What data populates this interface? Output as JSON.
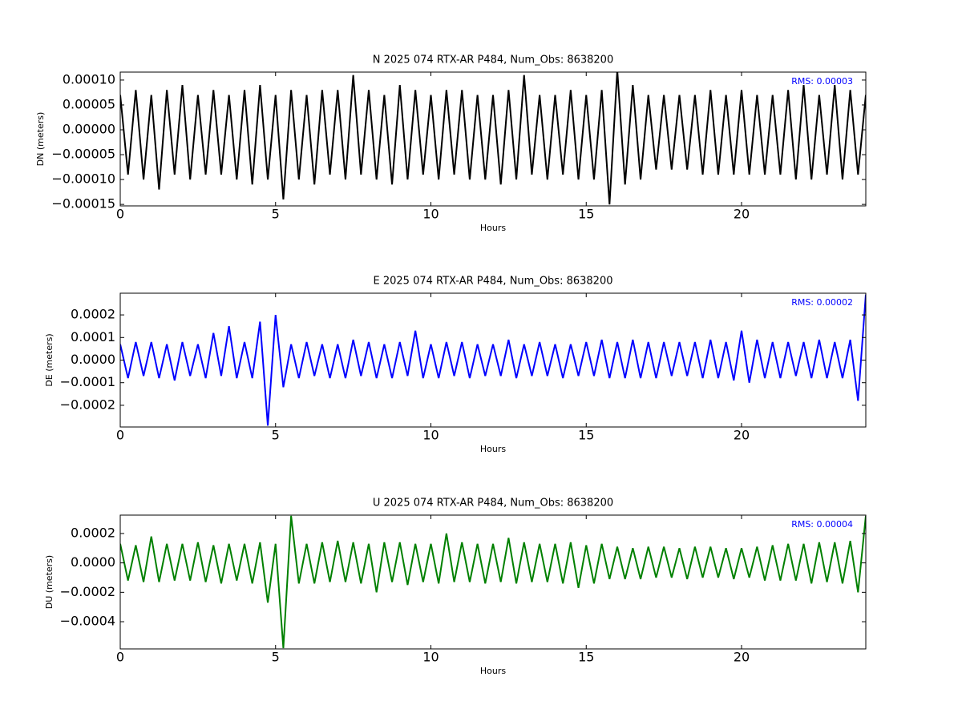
{
  "chart_data": [
    {
      "type": "line",
      "title": "N 2025 074 RTX-AR  P484, Num_Obs: 8638200",
      "xlabel": "Hours",
      "ylabel": "DN (meters)",
      "annotation": "RMS:  0.00003",
      "annotation_color": "#0000ff",
      "x": [
        0,
        0.25,
        0.5,
        0.75,
        1,
        1.25,
        1.5,
        1.75,
        2,
        2.25,
        2.5,
        2.75,
        3,
        3.25,
        3.5,
        3.75,
        4,
        4.25,
        4.5,
        4.75,
        5,
        5.25,
        5.5,
        5.75,
        6,
        6.25,
        6.5,
        6.75,
        7,
        7.25,
        7.5,
        7.75,
        8,
        8.25,
        8.5,
        8.75,
        9,
        9.25,
        9.5,
        9.75,
        10,
        10.25,
        10.5,
        10.75,
        11,
        11.25,
        11.5,
        11.75,
        12,
        12.25,
        12.5,
        12.75,
        13,
        13.25,
        13.5,
        13.75,
        14,
        14.25,
        14.5,
        14.75,
        15,
        15.25,
        15.5,
        15.75,
        16,
        16.25,
        16.5,
        16.75,
        17,
        17.25,
        17.5,
        17.75,
        18,
        18.25,
        18.5,
        18.75,
        19,
        19.25,
        19.5,
        19.75,
        20,
        20.25,
        20.5,
        20.75,
        21,
        21.25,
        21.5,
        21.75,
        22,
        22.25,
        22.5,
        22.75,
        23,
        23.25,
        23.5,
        23.75,
        24
      ],
      "series": [
        {
          "color": "#000000",
          "values": [
            7e-05,
            -9e-05,
            8e-05,
            -0.0001,
            7e-05,
            -0.00012,
            8e-05,
            -9e-05,
            9e-05,
            -0.0001,
            7e-05,
            -9e-05,
            8e-05,
            -9e-05,
            7e-05,
            -0.0001,
            8e-05,
            -0.00011,
            9e-05,
            -0.0001,
            7e-05,
            -0.00014,
            8e-05,
            -0.0001,
            7e-05,
            -0.00011,
            8e-05,
            -9e-05,
            8e-05,
            -0.0001,
            0.00011,
            -9e-05,
            8e-05,
            -0.0001,
            7e-05,
            -0.00011,
            9e-05,
            -0.0001,
            8e-05,
            -9e-05,
            7e-05,
            -0.0001,
            8e-05,
            -9e-05,
            8e-05,
            -0.0001,
            7e-05,
            -0.0001,
            7e-05,
            -0.00011,
            8e-05,
            -0.0001,
            0.00011,
            -9e-05,
            7e-05,
            -0.0001,
            7e-05,
            -9e-05,
            8e-05,
            -0.0001,
            7e-05,
            -0.0001,
            8e-05,
            -0.00015,
            0.00012,
            -0.00011,
            9e-05,
            -0.0001,
            7e-05,
            -8e-05,
            7e-05,
            -8e-05,
            7e-05,
            -8e-05,
            7e-05,
            -9e-05,
            8e-05,
            -9e-05,
            7e-05,
            -9e-05,
            8e-05,
            -9e-05,
            7e-05,
            -9e-05,
            7e-05,
            -9e-05,
            8e-05,
            -0.0001,
            9e-05,
            -0.0001,
            7e-05,
            -9e-05,
            9e-05,
            -0.0001,
            8e-05,
            -9e-05,
            7e-05
          ]
        }
      ],
      "xlim": [
        0,
        24
      ],
      "ylim": [
        -0.000153,
        0.000116
      ],
      "xticks": [
        0,
        5,
        10,
        15,
        20
      ],
      "yticks": [
        {
          "value": 0.0001,
          "label": "0.00010"
        },
        {
          "value": 5e-05,
          "label": "0.00005"
        },
        {
          "value": 0,
          "label": "0.00000"
        },
        {
          "value": -5e-05,
          "label": "−0.00005"
        },
        {
          "value": -0.0001,
          "label": "−0.00010"
        },
        {
          "value": -0.00015,
          "label": "−0.00015"
        }
      ]
    },
    {
      "type": "line",
      "title": "E 2025 074 RTX-AR  P484, Num_Obs: 8638200",
      "xlabel": "Hours",
      "ylabel": "DE (meters)",
      "annotation": "RMS:  0.00002",
      "annotation_color": "#0000ff",
      "x": [
        0,
        0.25,
        0.5,
        0.75,
        1,
        1.25,
        1.5,
        1.75,
        2,
        2.25,
        2.5,
        2.75,
        3,
        3.25,
        3.5,
        3.75,
        4,
        4.25,
        4.5,
        4.75,
        5,
        5.25,
        5.5,
        5.75,
        6,
        6.25,
        6.5,
        6.75,
        7,
        7.25,
        7.5,
        7.75,
        8,
        8.25,
        8.5,
        8.75,
        9,
        9.25,
        9.5,
        9.75,
        10,
        10.25,
        10.5,
        10.75,
        11,
        11.25,
        11.5,
        11.75,
        12,
        12.25,
        12.5,
        12.75,
        13,
        13.25,
        13.5,
        13.75,
        14,
        14.25,
        14.5,
        14.75,
        15,
        15.25,
        15.5,
        15.75,
        16,
        16.25,
        16.5,
        16.75,
        17,
        17.25,
        17.5,
        17.75,
        18,
        18.25,
        18.5,
        18.75,
        19,
        19.25,
        19.5,
        19.75,
        20,
        20.25,
        20.5,
        20.75,
        21,
        21.25,
        21.5,
        21.75,
        22,
        22.25,
        22.5,
        22.75,
        23,
        23.25,
        23.5,
        23.75,
        24
      ],
      "series": [
        {
          "color": "#0000ff",
          "values": [
            7e-05,
            -8e-05,
            8e-05,
            -7e-05,
            8e-05,
            -8e-05,
            7e-05,
            -9e-05,
            8e-05,
            -7e-05,
            7e-05,
            -8e-05,
            0.00012,
            -7e-05,
            0.00015,
            -8e-05,
            8e-05,
            -8e-05,
            0.00017,
            -0.00029,
            0.0002,
            -0.00012,
            7e-05,
            -8e-05,
            8e-05,
            -7e-05,
            7e-05,
            -8e-05,
            7e-05,
            -8e-05,
            9e-05,
            -7e-05,
            8e-05,
            -8e-05,
            7e-05,
            -8e-05,
            8e-05,
            -7e-05,
            0.00013,
            -8e-05,
            7e-05,
            -8e-05,
            8e-05,
            -7e-05,
            8e-05,
            -8e-05,
            7e-05,
            -7e-05,
            7e-05,
            -7e-05,
            9e-05,
            -8e-05,
            7e-05,
            -7e-05,
            8e-05,
            -7e-05,
            7e-05,
            -8e-05,
            7e-05,
            -7e-05,
            8e-05,
            -7e-05,
            9e-05,
            -8e-05,
            8e-05,
            -8e-05,
            9e-05,
            -8e-05,
            8e-05,
            -8e-05,
            8e-05,
            -7e-05,
            8e-05,
            -7e-05,
            8e-05,
            -8e-05,
            9e-05,
            -8e-05,
            8e-05,
            -9e-05,
            0.00013,
            -0.0001,
            9e-05,
            -8e-05,
            8e-05,
            -8e-05,
            8e-05,
            -7e-05,
            8e-05,
            -8e-05,
            9e-05,
            -8e-05,
            8e-05,
            -8e-05,
            9e-05,
            -0.00018,
            0.00029
          ]
        }
      ],
      "xlim": [
        0,
        24
      ],
      "ylim": [
        -0.000296,
        0.000296
      ],
      "xticks": [
        0,
        5,
        10,
        15,
        20
      ],
      "yticks": [
        {
          "value": 0.0002,
          "label": "0.0002"
        },
        {
          "value": 0.0001,
          "label": "0.0001"
        },
        {
          "value": 0,
          "label": "0.0000"
        },
        {
          "value": -0.0001,
          "label": "−0.0001"
        },
        {
          "value": -0.0002,
          "label": "−0.0002"
        }
      ]
    },
    {
      "type": "line",
      "title": "U 2025 074 RTX-AR  P484, Num_Obs: 8638200",
      "xlabel": "Hours",
      "ylabel": "DU (meters)",
      "annotation": "RMS:  0.00004",
      "annotation_color": "#0000ff",
      "x": [
        0,
        0.25,
        0.5,
        0.75,
        1,
        1.25,
        1.5,
        1.75,
        2,
        2.25,
        2.5,
        2.75,
        3,
        3.25,
        3.5,
        3.75,
        4,
        4.25,
        4.5,
        4.75,
        5,
        5.25,
        5.5,
        5.75,
        6,
        6.25,
        6.5,
        6.75,
        7,
        7.25,
        7.5,
        7.75,
        8,
        8.25,
        8.5,
        8.75,
        9,
        9.25,
        9.5,
        9.75,
        10,
        10.25,
        10.5,
        10.75,
        11,
        11.25,
        11.5,
        11.75,
        12,
        12.25,
        12.5,
        12.75,
        13,
        13.25,
        13.5,
        13.75,
        14,
        14.25,
        14.5,
        14.75,
        15,
        15.25,
        15.5,
        15.75,
        16,
        16.25,
        16.5,
        16.75,
        17,
        17.25,
        17.5,
        17.75,
        18,
        18.25,
        18.5,
        18.75,
        19,
        19.25,
        19.5,
        19.75,
        20,
        20.25,
        20.5,
        20.75,
        21,
        21.25,
        21.5,
        21.75,
        22,
        22.25,
        22.5,
        22.75,
        23,
        23.25,
        23.5,
        23.75,
        24
      ],
      "series": [
        {
          "color": "#008000",
          "values": [
            0.00013,
            -0.00012,
            0.00012,
            -0.00013,
            0.00018,
            -0.00013,
            0.00013,
            -0.00012,
            0.00013,
            -0.00012,
            0.00014,
            -0.00013,
            0.00012,
            -0.00014,
            0.00013,
            -0.00012,
            0.00013,
            -0.00014,
            0.00014,
            -0.00027,
            0.00013,
            -0.00058,
            0.00032,
            -0.00014,
            0.00013,
            -0.00014,
            0.00014,
            -0.00013,
            0.00015,
            -0.00013,
            0.00014,
            -0.00014,
            0.00013,
            -0.0002,
            0.00014,
            -0.00013,
            0.00014,
            -0.00015,
            0.00013,
            -0.00013,
            0.00013,
            -0.00014,
            0.0002,
            -0.00013,
            0.00014,
            -0.00013,
            0.00013,
            -0.00014,
            0.00013,
            -0.00013,
            0.00017,
            -0.00014,
            0.00014,
            -0.00013,
            0.00013,
            -0.00013,
            0.00013,
            -0.00014,
            0.00014,
            -0.00017,
            0.00012,
            -0.00014,
            0.00013,
            -0.00011,
            0.00011,
            -0.00011,
            0.0001,
            -0.00011,
            0.00011,
            -0.0001,
            0.00011,
            -0.0001,
            0.0001,
            -0.00011,
            0.00011,
            -0.0001,
            0.00011,
            -0.0001,
            0.0001,
            -0.00011,
            0.0001,
            -0.0001,
            0.00011,
            -0.00012,
            0.00012,
            -0.00012,
            0.00013,
            -0.00012,
            0.00013,
            -0.00014,
            0.00014,
            -0.00013,
            0.00014,
            -0.00014,
            0.00015,
            -0.0002,
            0.00032
          ]
        }
      ],
      "xlim": [
        0,
        24
      ],
      "ylim": [
        -0.000585,
        0.000325
      ],
      "xticks": [
        0,
        5,
        10,
        15,
        20
      ],
      "yticks": [
        {
          "value": 0.0002,
          "label": "0.0002"
        },
        {
          "value": 0,
          "label": "0.0000"
        },
        {
          "value": -0.0002,
          "label": "−0.0002"
        },
        {
          "value": -0.0004,
          "label": "−0.0004"
        }
      ]
    }
  ]
}
